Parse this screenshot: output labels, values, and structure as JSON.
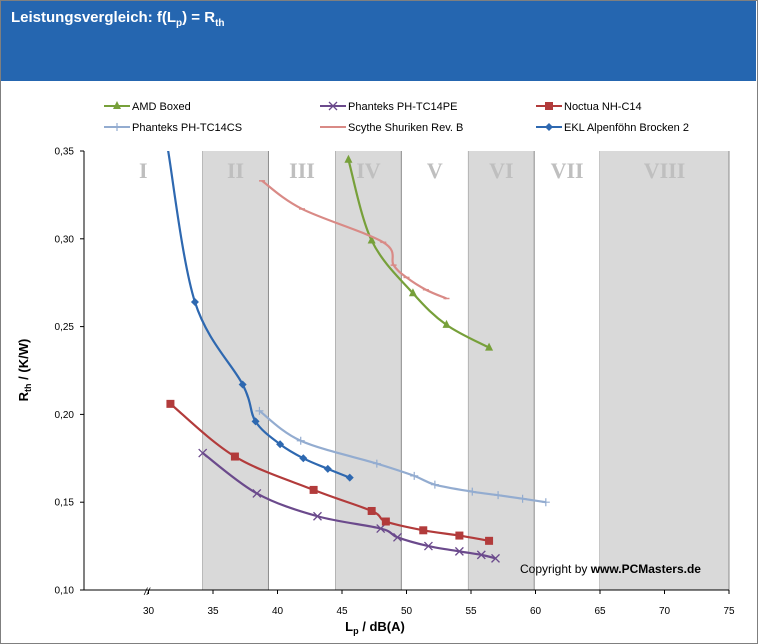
{
  "chart_data": {
    "type": "line",
    "title": "Leistungsvergleich: f(Lp) = Rth",
    "title_parts": {
      "main": "Leistungsvergleich: f(L",
      "sub1": "p",
      "mid": ") = R",
      "sub2": "th"
    },
    "xlabel": "Lp / dB(A)",
    "xlabel_parts": {
      "main": "L",
      "sub": "p",
      "rest": " / dB(A)"
    },
    "ylabel": "Rth / (K/W)",
    "ylabel_parts": {
      "main": "R",
      "sub": "th",
      "rest": " / (K/W)"
    },
    "xlim": [
      25,
      75
    ],
    "ylim": [
      0.1,
      0.35
    ],
    "xticks": [
      "30",
      "35",
      "40",
      "45",
      "50",
      "55",
      "60",
      "65",
      "70",
      "75"
    ],
    "yticks": [
      "0,10",
      "0,15",
      "0,20",
      "0,25",
      "0,30",
      "0,35"
    ],
    "axis_break": "//",
    "grid": false,
    "legend_position": "top",
    "zones": [
      {
        "label": "I",
        "from": 25,
        "to": 34.2,
        "shaded": false
      },
      {
        "label": "II",
        "from": 34.2,
        "to": 39.3,
        "shaded": true
      },
      {
        "label": "III",
        "from": 39.3,
        "to": 44.5,
        "shaded": false
      },
      {
        "label": "IV",
        "from": 44.5,
        "to": 49.6,
        "shaded": true
      },
      {
        "label": "V",
        "from": 49.6,
        "to": 54.8,
        "shaded": false
      },
      {
        "label": "VI",
        "from": 54.8,
        "to": 59.9,
        "shaded": true
      },
      {
        "label": "VII",
        "from": 59.9,
        "to": 65.0,
        "shaded": false
      },
      {
        "label": "VIII",
        "from": 65.0,
        "to": 75,
        "shaded": true
      }
    ],
    "series": [
      {
        "name": "AMD Boxed",
        "color": "#77a03a",
        "marker": "triangle",
        "x": [
          45.5,
          47.3,
          50.5,
          53.1,
          56.4
        ],
        "y": [
          0.345,
          0.299,
          0.269,
          0.251,
          0.238
        ]
      },
      {
        "name": "Phanteks PH-TC14PE",
        "color": "#6b4a8c",
        "marker": "x",
        "x": [
          34.2,
          38.4,
          43.1,
          48.0,
          49.3,
          51.7,
          54.1,
          55.8,
          56.9
        ],
        "y": [
          0.178,
          0.155,
          0.142,
          0.135,
          0.13,
          0.125,
          0.122,
          0.12,
          0.118
        ]
      },
      {
        "name": "Noctua NH-C14",
        "color": "#b23b3b",
        "marker": "square",
        "x": [
          31.7,
          36.7,
          42.8,
          47.3,
          48.4,
          51.3,
          54.1,
          56.4
        ],
        "y": [
          0.206,
          0.176,
          0.157,
          0.145,
          0.139,
          0.134,
          0.131,
          0.128
        ]
      },
      {
        "name": "Phanteks PH-TC14CS",
        "color": "#93acd0",
        "marker": "plus",
        "x": [
          38.6,
          41.8,
          47.7,
          50.6,
          52.2,
          55.1,
          57.1,
          59.0,
          60.8
        ],
        "y": [
          0.202,
          0.185,
          0.172,
          0.165,
          0.16,
          0.156,
          0.154,
          0.152,
          0.15
        ]
      },
      {
        "name": "Scythe Shuriken Rev. B",
        "color": "#d98a86",
        "marker": "dash",
        "x": [
          38.8,
          41.9,
          48.2,
          49.0,
          50.0,
          51.5,
          53.1
        ],
        "y": [
          0.333,
          0.317,
          0.298,
          0.285,
          0.278,
          0.271,
          0.266
        ]
      },
      {
        "name": "EKL Alpenföhn Brocken 2",
        "color": "#2e68b0",
        "marker": "diamond",
        "x": [
          33.6,
          37.3,
          38.3,
          40.2,
          42.0,
          43.9,
          45.6
        ],
        "y": [
          0.264,
          0.217,
          0.196,
          0.183,
          0.175,
          0.169,
          0.164
        ],
        "lead_in": {
          "x": 31.5,
          "y": 0.35
        }
      }
    ]
  },
  "copyright": {
    "prefix": "Copyright by ",
    "site": "www.PCMasters.de"
  }
}
